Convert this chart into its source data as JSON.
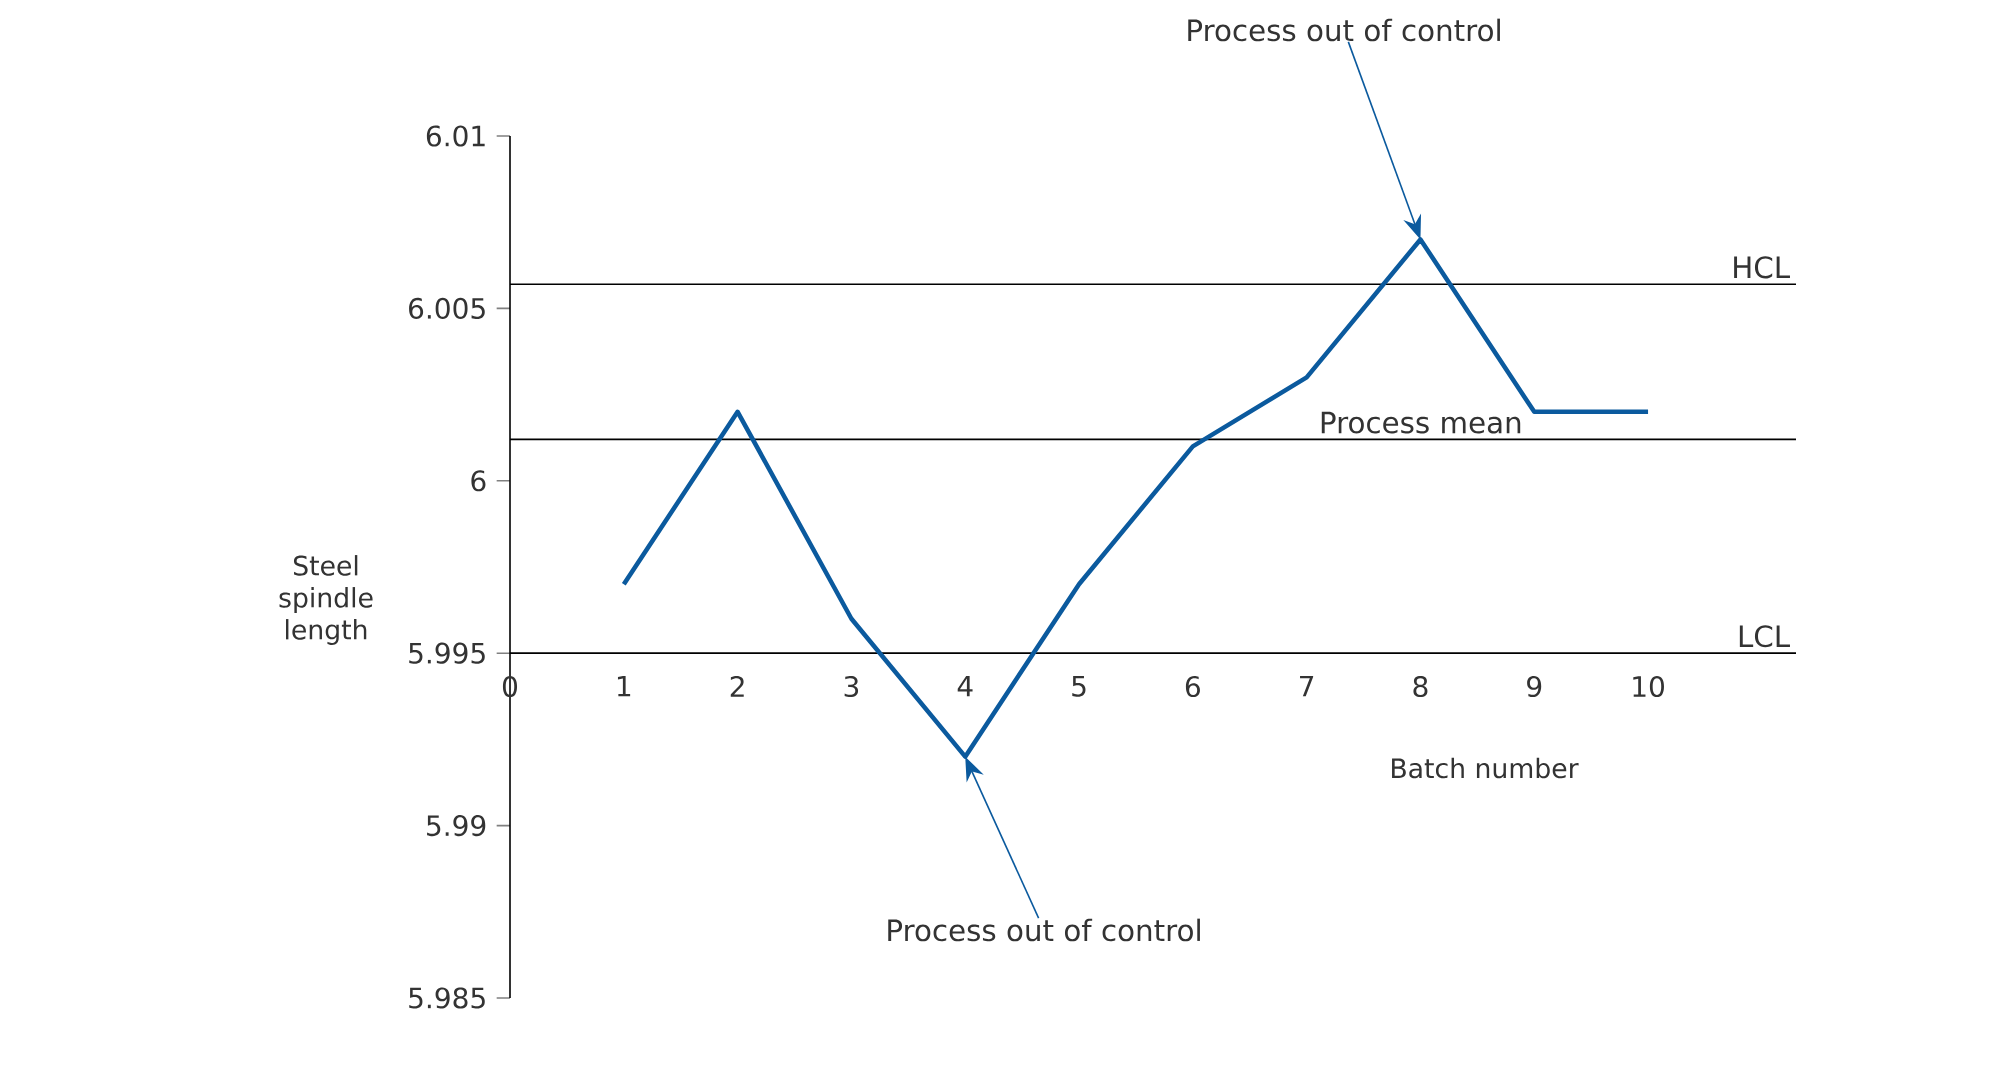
{
  "chart_data": {
    "type": "line",
    "xlabel": "Batch number",
    "ylabel": "Steel spindle length",
    "x": [
      1,
      2,
      3,
      4,
      5,
      6,
      7,
      8,
      9,
      10
    ],
    "series": [
      {
        "color": "#0b5a9e",
        "values": [
          5.997,
          6.002,
          5.996,
          5.992,
          5.997,
          6.001,
          6.003,
          6.007,
          6.002,
          6.002
        ]
      }
    ],
    "xlim": [
      0,
      11.3
    ],
    "xticks": [
      0,
      1,
      2,
      3,
      4,
      5,
      6,
      7,
      8,
      9,
      10
    ],
    "ylim": [
      5.985,
      6.01
    ],
    "yticks": [
      5.985,
      5.99,
      5.995,
      6,
      6.005,
      6.01
    ],
    "ref_lines": [
      {
        "axis": "y",
        "value": 6.0057,
        "label": "HCL",
        "color": "#000000"
      },
      {
        "axis": "y",
        "value": 6.0012,
        "label": "Process mean",
        "color": "#000000"
      },
      {
        "axis": "y",
        "value": 5.995,
        "label": "LCL",
        "color": "#000000"
      }
    ],
    "annotations": [
      {
        "text": "Process out of control",
        "x": 8,
        "y": 6.007
      },
      {
        "text": "Process out of control",
        "x": 4,
        "y": 5.992
      }
    ],
    "marker": "none",
    "line_style": "solid"
  }
}
